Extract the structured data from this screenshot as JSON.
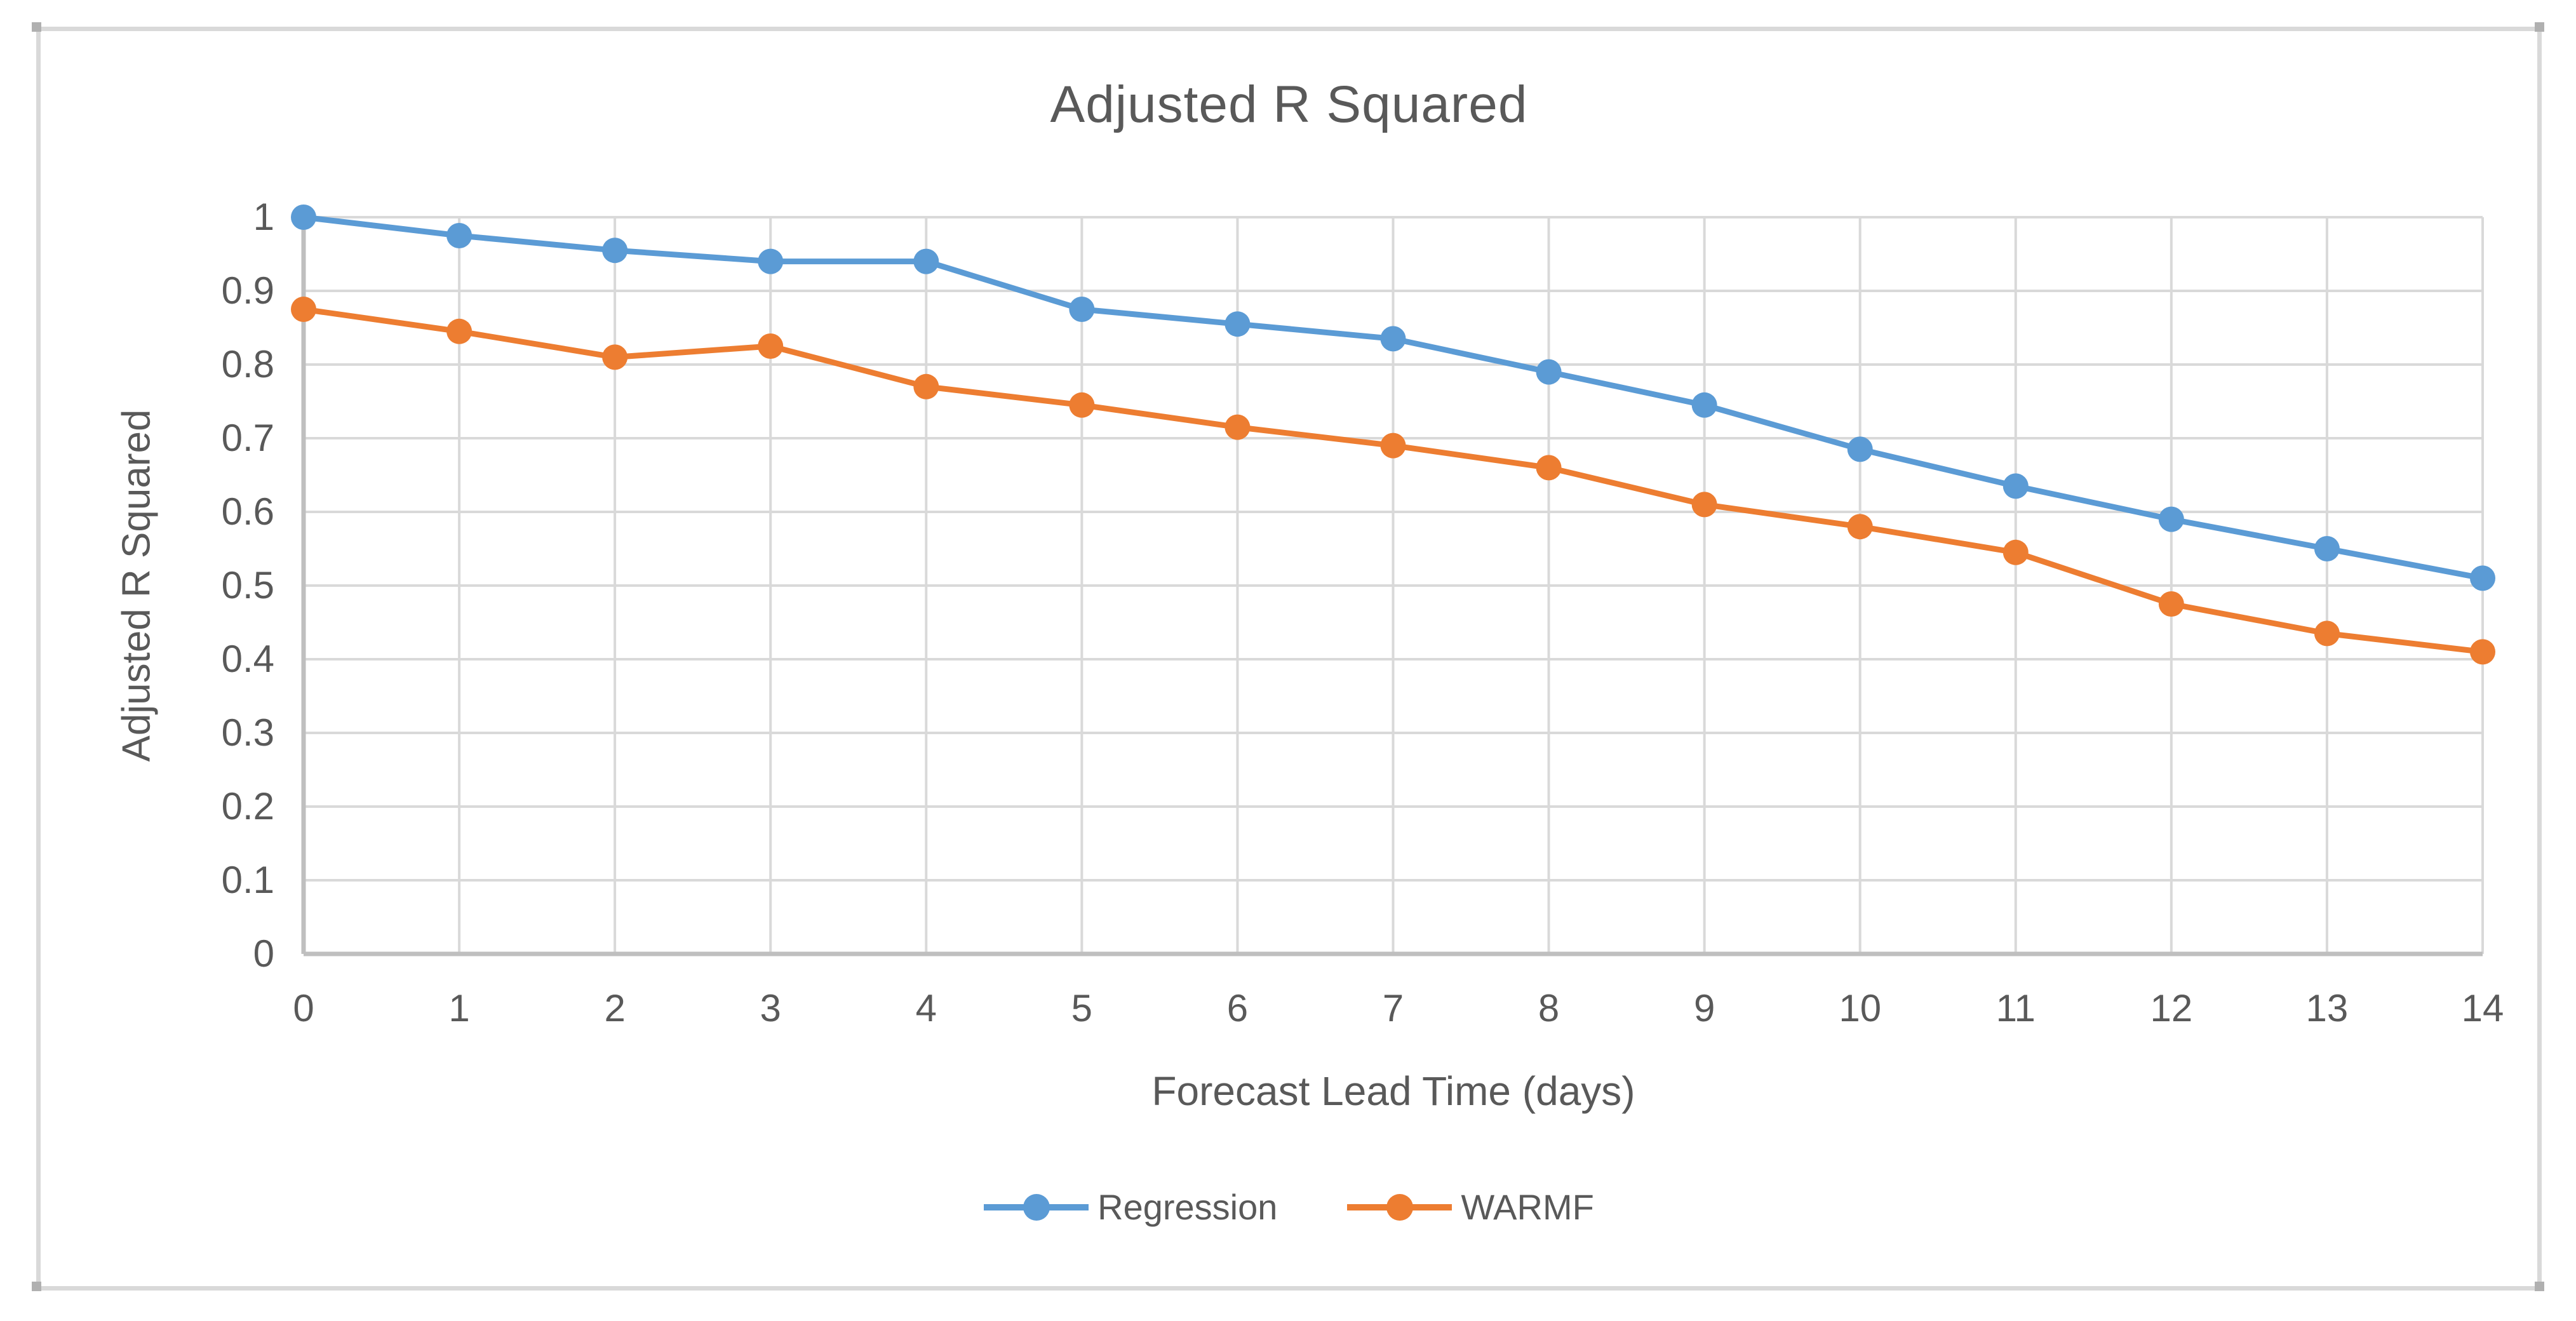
{
  "title": "Adjusted R Squared",
  "colors": {
    "regression_series": "#5B9BD5",
    "warmf_series": "#ED7D31",
    "gridline": "#D9D9D9",
    "axis_line": "#BFBFBF",
    "text": "#595959",
    "frame_border": "#D9D9D9",
    "background": "#FFFFFF"
  },
  "legend": {
    "items": [
      {
        "label": "Regression",
        "color": "#5B9BD5"
      },
      {
        "label": "WARMF",
        "color": "#ED7D31"
      }
    ]
  },
  "chart_data": {
    "type": "line",
    "title": "Adjusted R Squared",
    "xlabel": "Forecast Lead Time (days)",
    "ylabel": "Adjusted R Squared",
    "x": [
      0,
      1,
      2,
      3,
      4,
      5,
      6,
      7,
      8,
      9,
      10,
      11,
      12,
      13,
      14
    ],
    "series": [
      {
        "name": "Regression",
        "color": "#5B9BD5",
        "values": [
          1.0,
          0.975,
          0.955,
          0.94,
          0.94,
          0.875,
          0.855,
          0.835,
          0.79,
          0.745,
          0.685,
          0.635,
          0.59,
          0.55,
          0.51
        ]
      },
      {
        "name": "WARMF",
        "color": "#ED7D31",
        "values": [
          0.875,
          0.845,
          0.81,
          0.825,
          0.77,
          0.745,
          0.715,
          0.69,
          0.66,
          0.61,
          0.58,
          0.545,
          0.475,
          0.435,
          0.41
        ]
      }
    ],
    "xlim": [
      0,
      14
    ],
    "ylim": [
      0,
      1
    ],
    "x_ticks": [
      "0",
      "1",
      "2",
      "3",
      "4",
      "5",
      "6",
      "7",
      "8",
      "9",
      "10",
      "11",
      "12",
      "13",
      "14"
    ],
    "y_ticks": [
      "0",
      "0.1",
      "0.2",
      "0.3",
      "0.4",
      "0.5",
      "0.6",
      "0.7",
      "0.8",
      "0.9",
      "1"
    ],
    "grid": true,
    "legend_position": "bottom",
    "marker": "circle"
  }
}
